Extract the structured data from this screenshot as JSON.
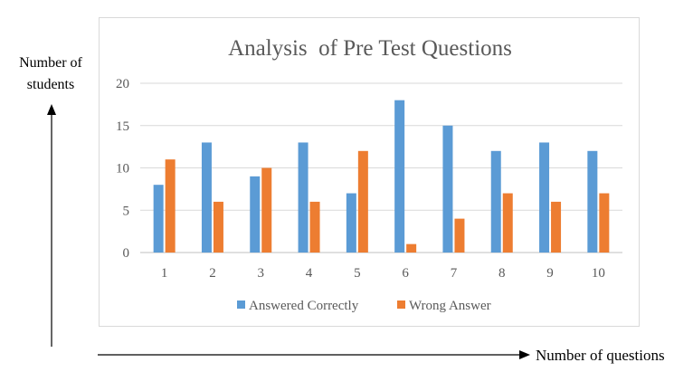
{
  "y_arrow_label": [
    "Number of",
    "students"
  ],
  "x_arrow_label": "Number of questions",
  "chart_data": {
    "type": "bar",
    "title": "Analysis  of Pre Test Questions",
    "categories": [
      "1",
      "2",
      "3",
      "4",
      "5",
      "6",
      "7",
      "8",
      "9",
      "10"
    ],
    "series": [
      {
        "name": "Answered Correctly",
        "color": "#5b9bd5",
        "values": [
          8,
          13,
          9,
          13,
          7,
          18,
          15,
          12,
          13,
          12
        ]
      },
      {
        "name": "Wrong Answer",
        "color": "#ed7d31",
        "values": [
          11,
          6,
          10,
          6,
          12,
          1,
          4,
          7,
          6,
          7
        ]
      }
    ],
    "ylim": [
      0,
      20
    ],
    "yticks": [
      "0",
      "5",
      "10",
      "15",
      "20"
    ],
    "grid": true,
    "legend": "bottom"
  }
}
